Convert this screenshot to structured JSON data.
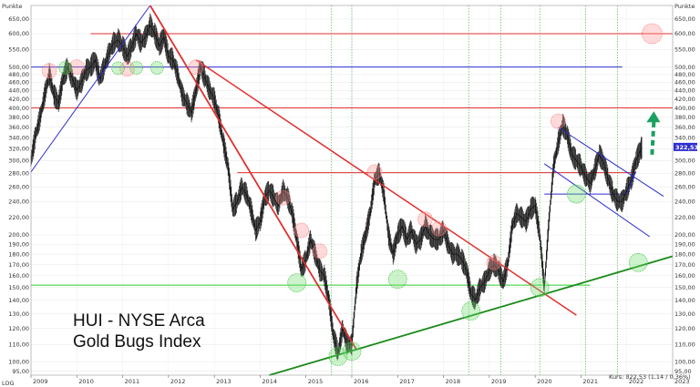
{
  "chart_data": {
    "type": "line",
    "title": "HUI - NYSE Arca\nGold Bugs Index",
    "title_lines": [
      "HUI - NYSE Arca",
      "Gold Bugs Index"
    ],
    "yunit": "Punkte",
    "scale_label": "LOG",
    "scale": "log",
    "ylim": [
      93,
      700
    ],
    "xlim": [
      2009.0,
      2023.0
    ],
    "y_ticks": [
      95,
      100,
      110,
      120,
      130,
      140,
      150,
      160,
      170,
      180,
      190,
      200,
      220,
      240,
      260,
      280,
      300,
      320,
      340,
      360,
      380,
      400,
      420,
      440,
      460,
      480,
      500,
      550,
      600,
      650
    ],
    "y_tick_labels": [
      "95,00",
      "100,00",
      "110,00",
      "120,00",
      "130,00",
      "140,00",
      "150,00",
      "160,00",
      "170,00",
      "180,00",
      "190,00",
      "200,00",
      "220,00",
      "240,00",
      "260,00",
      "280,00",
      "300,00",
      "320,00",
      "340,00",
      "360,00",
      "380,00",
      "400,00",
      "420,00",
      "440,00",
      "460,00",
      "480,00",
      "500,00",
      "550,00",
      "600,00",
      "650,00"
    ],
    "x_tick_labels": [
      "2009",
      "2010",
      "2011",
      "2012",
      "2013",
      "2014",
      "2015",
      "2016",
      "2017",
      "2018",
      "2019",
      "2020",
      "2021",
      "2022",
      "2023"
    ],
    "x_ticks": [
      2009,
      2010,
      2011,
      2012,
      2013,
      2014,
      2015,
      2016,
      2017,
      2018,
      2019,
      2020,
      2021,
      2022,
      2023
    ],
    "price_series": [
      [
        2009.0,
        300
      ],
      [
        2009.1,
        345
      ],
      [
        2009.2,
        380
      ],
      [
        2009.3,
        430
      ],
      [
        2009.4,
        480
      ],
      [
        2009.5,
        430
      ],
      [
        2009.6,
        410
      ],
      [
        2009.7,
        470
      ],
      [
        2009.8,
        500
      ],
      [
        2009.9,
        470
      ],
      [
        2010.0,
        440
      ],
      [
        2010.1,
        460
      ],
      [
        2010.2,
        490
      ],
      [
        2010.3,
        500
      ],
      [
        2010.4,
        520
      ],
      [
        2010.5,
        470
      ],
      [
        2010.6,
        500
      ],
      [
        2010.7,
        540
      ],
      [
        2010.8,
        570
      ],
      [
        2010.9,
        580
      ],
      [
        2011.0,
        560
      ],
      [
        2011.1,
        530
      ],
      [
        2011.2,
        560
      ],
      [
        2011.3,
        600
      ],
      [
        2011.4,
        570
      ],
      [
        2011.5,
        590
      ],
      [
        2011.6,
        630
      ],
      [
        2011.7,
        600
      ],
      [
        2011.8,
        560
      ],
      [
        2011.9,
        590
      ],
      [
        2012.0,
        530
      ],
      [
        2012.1,
        520
      ],
      [
        2012.2,
        480
      ],
      [
        2012.3,
        430
      ],
      [
        2012.4,
        410
      ],
      [
        2012.5,
        390
      ],
      [
        2012.6,
        440
      ],
      [
        2012.7,
        500
      ],
      [
        2012.8,
        470
      ],
      [
        2012.9,
        440
      ],
      [
        2013.0,
        420
      ],
      [
        2013.1,
        380
      ],
      [
        2013.2,
        330
      ],
      [
        2013.3,
        290
      ],
      [
        2013.4,
        230
      ],
      [
        2013.5,
        240
      ],
      [
        2013.6,
        260
      ],
      [
        2013.7,
        250
      ],
      [
        2013.8,
        230
      ],
      [
        2013.9,
        205
      ],
      [
        2014.0,
        215
      ],
      [
        2014.1,
        245
      ],
      [
        2014.2,
        255
      ],
      [
        2014.3,
        245
      ],
      [
        2014.4,
        235
      ],
      [
        2014.5,
        255
      ],
      [
        2014.6,
        245
      ],
      [
        2014.7,
        225
      ],
      [
        2014.8,
        195
      ],
      [
        2014.9,
        165
      ],
      [
        2015.0,
        175
      ],
      [
        2015.1,
        195
      ],
      [
        2015.2,
        180
      ],
      [
        2015.3,
        165
      ],
      [
        2015.4,
        160
      ],
      [
        2015.5,
        140
      ],
      [
        2015.6,
        115
      ],
      [
        2015.7,
        105
      ],
      [
        2015.8,
        120
      ],
      [
        2015.9,
        110
      ],
      [
        2016.0,
        110
      ],
      [
        2016.1,
        150
      ],
      [
        2016.2,
        180
      ],
      [
        2016.3,
        200
      ],
      [
        2016.4,
        225
      ],
      [
        2016.5,
        270
      ],
      [
        2016.6,
        280
      ],
      [
        2016.7,
        250
      ],
      [
        2016.8,
        200
      ],
      [
        2016.9,
        180
      ],
      [
        2017.0,
        200
      ],
      [
        2017.1,
        210
      ],
      [
        2017.2,
        195
      ],
      [
        2017.3,
        205
      ],
      [
        2017.4,
        190
      ],
      [
        2017.5,
        195
      ],
      [
        2017.6,
        210
      ],
      [
        2017.7,
        200
      ],
      [
        2017.8,
        195
      ],
      [
        2017.9,
        195
      ],
      [
        2018.0,
        205
      ],
      [
        2018.1,
        190
      ],
      [
        2018.2,
        180
      ],
      [
        2018.3,
        180
      ],
      [
        2018.4,
        175
      ],
      [
        2018.5,
        165
      ],
      [
        2018.6,
        145
      ],
      [
        2018.7,
        140
      ],
      [
        2018.8,
        150
      ],
      [
        2018.9,
        155
      ],
      [
        2019.0,
        165
      ],
      [
        2019.1,
        170
      ],
      [
        2019.2,
        165
      ],
      [
        2019.3,
        155
      ],
      [
        2019.4,
        170
      ],
      [
        2019.5,
        210
      ],
      [
        2019.6,
        225
      ],
      [
        2019.7,
        220
      ],
      [
        2019.8,
        215
      ],
      [
        2019.9,
        230
      ],
      [
        2020.0,
        235
      ],
      [
        2020.1,
        200
      ],
      [
        2020.2,
        150
      ],
      [
        2020.3,
        215
      ],
      [
        2020.4,
        290
      ],
      [
        2020.5,
        330
      ],
      [
        2020.6,
        365
      ],
      [
        2020.7,
        345
      ],
      [
        2020.8,
        310
      ],
      [
        2020.9,
        300
      ],
      [
        2021.0,
        290
      ],
      [
        2021.1,
        275
      ],
      [
        2021.2,
        265
      ],
      [
        2021.3,
        285
      ],
      [
        2021.4,
        310
      ],
      [
        2021.5,
        295
      ],
      [
        2021.6,
        270
      ],
      [
        2021.7,
        250
      ],
      [
        2021.8,
        240
      ],
      [
        2021.9,
        240
      ],
      [
        2022.0,
        255
      ],
      [
        2022.1,
        270
      ],
      [
        2022.2,
        300
      ],
      [
        2022.3,
        318
      ],
      [
        2022.33,
        322.53
      ]
    ],
    "horizontal_lines": [
      {
        "color": "#e03030",
        "y": 600,
        "x": [
          2010.3,
          2023.0
        ]
      },
      {
        "color": "#2d2dd0",
        "y": 500,
        "x": [
          2009.0,
          2021.9
        ]
      },
      {
        "color": "#e03030",
        "y": 400,
        "x": [
          2009.0,
          2023.0
        ]
      },
      {
        "color": "#e03030",
        "y": 281,
        "x": [
          2013.5,
          2022.2
        ]
      },
      {
        "color": "#2d2dd0",
        "y": 250,
        "x": [
          2020.2,
          2022.0
        ]
      },
      {
        "color": "#2ecc2e",
        "y": 152,
        "x": [
          2009.0,
          2021.2
        ]
      }
    ],
    "trend_lines": [
      {
        "color": "#2d2dd0",
        "width": 1,
        "from": [
          2009.0,
          282
        ],
        "to": [
          2011.6,
          700
        ]
      },
      {
        "color": "#e03030",
        "width": 1.8,
        "from": [
          2011.6,
          700
        ],
        "to": [
          2016.1,
          107
        ]
      },
      {
        "color": "#e03030",
        "width": 1.5,
        "from": [
          2012.6,
          520
        ],
        "to": [
          2020.9,
          129
        ]
      },
      {
        "color": "#2d2dd0",
        "width": 1,
        "from": [
          2020.5,
          360
        ],
        "to": [
          2022.8,
          247
        ]
      },
      {
        "color": "#2d2dd0",
        "width": 1,
        "from": [
          2020.2,
          295
        ],
        "to": [
          2022.5,
          198
        ]
      },
      {
        "color": "#2d2dd0",
        "width": 1,
        "from": [
          2022.0,
          250
        ],
        "to": [
          2022.2,
          283
        ]
      },
      {
        "color": "#1a8a1a",
        "width": 1.8,
        "from": [
          2014.2,
          93
        ],
        "to": [
          2023.0,
          178
        ]
      }
    ],
    "red_markers": [
      [
        2009.4,
        490
      ],
      [
        2010.0,
        500
      ],
      [
        2011.1,
        495
      ],
      [
        2012.6,
        500
      ],
      [
        2014.5,
        245
      ],
      [
        2014.9,
        205
      ],
      [
        2015.3,
        183
      ],
      [
        2016.5,
        282
      ],
      [
        2017.6,
        218
      ],
      [
        2017.9,
        207
      ],
      [
        2019.1,
        172
      ],
      [
        2020.5,
        372
      ],
      [
        2022.55,
        600
      ]
    ],
    "green_markers": [
      [
        2009.75,
        498
      ],
      [
        2010.9,
        497
      ],
      [
        2011.3,
        498
      ],
      [
        2011.75,
        498
      ],
      [
        2014.8,
        154
      ],
      [
        2015.7,
        103
      ],
      [
        2016.0,
        106
      ],
      [
        2017.0,
        157
      ],
      [
        2018.6,
        132
      ],
      [
        2020.1,
        150
      ],
      [
        2020.9,
        250
      ],
      [
        2022.25,
        172
      ]
    ],
    "green_arrow": {
      "from": [
        2022.55,
        310
      ],
      "to": [
        2022.55,
        385
      ]
    },
    "vertical_markers_x": [
      2015.55,
      2016.0,
      2018.55,
      2019.25,
      2020.1,
      2021.1,
      2021.8
    ],
    "last_price_badge": "322,53",
    "footer": "Kurs: 322,53 (1,14 / 0,36%)"
  }
}
